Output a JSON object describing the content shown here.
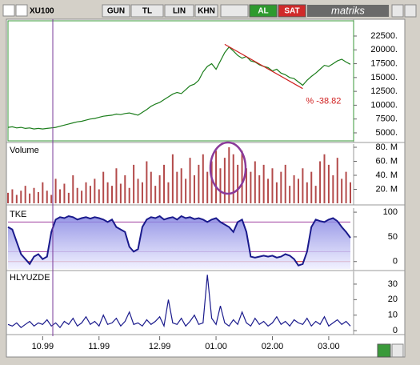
{
  "toolbar": {
    "symbol": "XU100",
    "buttons": [
      "GUN",
      "TL",
      "LIN",
      "KHN"
    ],
    "buy": "AL",
    "sell": "SAT",
    "brand": "matriks"
  },
  "chart_data": [
    {
      "type": "line",
      "color": "#1b7d1b",
      "values": [
        6000,
        6100,
        5900,
        6000,
        5800,
        5900,
        5700,
        5800,
        5700,
        5800,
        5900,
        6000,
        6200,
        6400,
        6600,
        6800,
        7000,
        7100,
        7300,
        7500,
        7600,
        7800,
        8000,
        8100,
        8200,
        8400,
        8300,
        8500,
        8600,
        8400,
        8200,
        8700,
        9200,
        9800,
        10200,
        10500,
        11000,
        11500,
        12000,
        12300,
        12100,
        12800,
        13500,
        13800,
        14500,
        16000,
        17000,
        17500,
        16500,
        18000,
        19500,
        20500,
        19800,
        19000,
        18500,
        18800,
        18000,
        17800,
        17300,
        17000,
        16800,
        16200,
        16500,
        15800,
        15500,
        15000,
        14800,
        14200,
        13600,
        14500,
        15200,
        15800,
        16500,
        17200,
        17000,
        17500,
        18000,
        18300,
        17800,
        17400
      ],
      "ylim": [
        3550,
        25250
      ],
      "yticks": [
        {
          "value": 5000,
          "label": "5000."
        },
        {
          "value": 7500,
          "label": "7500."
        },
        {
          "value": 10000,
          "label": "10000."
        },
        {
          "value": 12500,
          "label": "12500."
        },
        {
          "value": 15000,
          "label": "15000."
        },
        {
          "value": 17500,
          "label": "17500."
        },
        {
          "value": 20000,
          "label": "20000."
        },
        {
          "value": 22500,
          "label": "22500."
        }
      ],
      "trendline": {
        "x": [
          50,
          68
        ],
        "y": [
          21000,
          13000
        ],
        "color": "#d02020"
      },
      "annotation": {
        "text": "% -38.82",
        "value": -38.82
      }
    },
    {
      "type": "bar",
      "title": "Volume",
      "color": "#b34a4a",
      "values": [
        15,
        20,
        12,
        18,
        25,
        14,
        22,
        16,
        30,
        18,
        12,
        35,
        20,
        28,
        15,
        40,
        22,
        18,
        30,
        25,
        35,
        20,
        45,
        30,
        25,
        50,
        28,
        40,
        22,
        55,
        35,
        30,
        60,
        45,
        25,
        40,
        55,
        30,
        70,
        45,
        50,
        35,
        65,
        40,
        55,
        70,
        45,
        60,
        75,
        50,
        65,
        80,
        70,
        55,
        75,
        50,
        45,
        60,
        40,
        55,
        35,
        50,
        30,
        45,
        55,
        25,
        40,
        35,
        50,
        30,
        45,
        25,
        60,
        70,
        55,
        40,
        65,
        35,
        45,
        30
      ],
      "ylim": [
        0,
        82.3
      ],
      "yticks": [
        {
          "value": 20,
          "label": "20. M"
        },
        {
          "value": 40,
          "label": "40. M"
        },
        {
          "value": 60,
          "label": "60. M"
        },
        {
          "value": 80,
          "label": "80. M"
        }
      ]
    },
    {
      "type": "area",
      "title": "TKE",
      "color": "#1a1a8c",
      "values": [
        70,
        65,
        40,
        15,
        5,
        -5,
        10,
        15,
        5,
        10,
        60,
        85,
        90,
        88,
        92,
        90,
        85,
        88,
        90,
        87,
        90,
        88,
        85,
        80,
        85,
        70,
        65,
        60,
        30,
        20,
        25,
        70,
        85,
        90,
        88,
        92,
        85,
        88,
        90,
        85,
        92,
        88,
        90,
        86,
        88,
        85,
        80,
        85,
        88,
        80,
        75,
        70,
        60,
        80,
        85,
        60,
        10,
        8,
        10,
        12,
        10,
        12,
        8,
        10,
        15,
        12,
        5,
        -8,
        -5,
        20,
        70,
        85,
        82,
        80,
        85,
        88,
        82,
        70,
        60,
        48
      ],
      "ylim": [
        -15,
        105
      ],
      "yticks": [
        0,
        50,
        100
      ],
      "hlines": [
        {
          "value": 80,
          "color": "#a040a0"
        },
        {
          "value": 20,
          "color": "#a040a0"
        },
        {
          "value": 0,
          "color": "#d02020"
        }
      ]
    },
    {
      "type": "line",
      "title": "HLYUZDE",
      "color": "#1a1a8c",
      "values": [
        4,
        3,
        5,
        2,
        4,
        6,
        3,
        5,
        4,
        7,
        3,
        5,
        2,
        6,
        4,
        8,
        3,
        5,
        9,
        4,
        6,
        3,
        10,
        4,
        5,
        8,
        3,
        6,
        12,
        4,
        5,
        3,
        7,
        4,
        6,
        9,
        3,
        20,
        5,
        4,
        8,
        3,
        6,
        10,
        4,
        5,
        36,
        8,
        4,
        16,
        5,
        3,
        7,
        4,
        12,
        5,
        3,
        8,
        4,
        6,
        3,
        5,
        9,
        4,
        6,
        3,
        7,
        5,
        4,
        8,
        3,
        6,
        4,
        9,
        3,
        5,
        7,
        4,
        6,
        3
      ],
      "ylim": [
        -1.5,
        37.2
      ],
      "yticks": [
        0,
        10,
        20,
        30
      ],
      "xlim": [
        0,
        79
      ],
      "xticks": [
        {
          "value": 8,
          "label": "10.99"
        },
        {
          "value": 21,
          "label": "11.99"
        },
        {
          "value": 35,
          "label": "12.99"
        },
        {
          "value": 48,
          "label": "01.00"
        },
        {
          "value": 61,
          "label": "02.00"
        },
        {
          "value": 74,
          "label": "03.00"
        }
      ]
    }
  ]
}
